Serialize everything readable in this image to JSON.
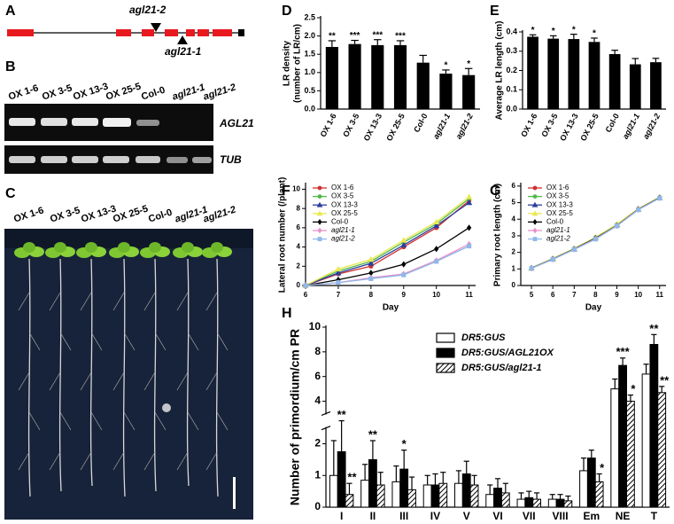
{
  "gene_model": {
    "panel": "A",
    "alleles": [
      "agl21-2",
      "agl21-1"
    ]
  },
  "gel": {
    "panel": "B",
    "lanes": [
      "OX 1-6",
      "OX 3-5",
      "OX 13-3",
      "OX 25-5",
      "Col-0",
      "agl21-1",
      "agl21-2"
    ],
    "genes": [
      "AGL21",
      "TUB"
    ]
  },
  "photo": {
    "panel": "C",
    "lanes": [
      "OX 1-6",
      "OX 3-5",
      "OX 13-3",
      "OX 25-5",
      "Col-0",
      "agl21-1",
      "agl21-2"
    ]
  },
  "chart_data": [
    {
      "type": "bar",
      "panel": "D",
      "ylabel": [
        "LR density",
        "(number of LR/cm)"
      ],
      "categories": [
        "OX 1-6",
        "OX 3-5",
        "OX 13-3",
        "OX 25-5",
        "Col-0",
        "agl21-1",
        "agl21-2"
      ],
      "italic": [
        false,
        false,
        false,
        false,
        false,
        true,
        true
      ],
      "values": [
        1.7,
        1.78,
        1.75,
        1.75,
        1.27,
        0.97,
        0.93
      ],
      "errors": [
        0.17,
        0.1,
        0.15,
        0.12,
        0.2,
        0.1,
        0.18
      ],
      "annotations": [
        "**",
        "***",
        "***",
        "***",
        null,
        "*",
        "*"
      ],
      "color": "#000000",
      "ylim": [
        0,
        2.5
      ],
      "yticks": [
        {
          "value": 0,
          "label": "0.0"
        },
        {
          "value": 0.5,
          "label": "0.5"
        },
        {
          "value": 1,
          "label": "1.0"
        },
        {
          "value": 1.5,
          "label": "1.5"
        },
        {
          "value": 2,
          "label": "2.0"
        },
        {
          "value": 2.5,
          "label": "2.5"
        }
      ]
    },
    {
      "type": "bar",
      "panel": "E",
      "ylabel": [
        "Average LR length (cm)"
      ],
      "categories": [
        "OX 1-6",
        "OX 3-5",
        "OX 13-3",
        "OX 25-5",
        "Col-0",
        "agl21-1",
        "agl21-2"
      ],
      "italic": [
        false,
        false,
        false,
        false,
        false,
        true,
        true
      ],
      "values": [
        0.375,
        0.365,
        0.363,
        0.348,
        0.285,
        0.232,
        0.243
      ],
      "errors": [
        0.01,
        0.015,
        0.025,
        0.02,
        0.02,
        0.03,
        0.02
      ],
      "annotations": [
        "*",
        "*",
        "*",
        "*",
        null,
        null,
        null
      ],
      "color": "#000000",
      "ylim": [
        0,
        0.4
      ],
      "yticks": [
        {
          "value": 0,
          "label": "0.0"
        },
        0.1,
        0.2,
        0.3,
        0.4
      ]
    },
    {
      "type": "line",
      "panel": "F",
      "xlabel": "Day",
      "ylabel": [
        "Lateral root number (/plant)"
      ],
      "x": [
        6,
        7,
        8,
        9,
        10,
        11
      ],
      "xlim": [
        6,
        11.2
      ],
      "xticks": [
        6,
        7,
        8,
        9,
        10,
        11
      ],
      "ylim": [
        0,
        10.5
      ],
      "yticks": [
        0,
        2,
        4,
        6,
        8,
        10
      ],
      "series": [
        {
          "name": "OX 1-6",
          "color": "#d03030",
          "marker": "circle",
          "values": [
            0,
            1.2,
            2.0,
            4.0,
            6.0,
            8.8
          ]
        },
        {
          "name": "OX 3-5",
          "color": "#50b848",
          "marker": "circle",
          "values": [
            0,
            1.5,
            2.5,
            4.5,
            6.4,
            9.0
          ]
        },
        {
          "name": "OX 13-3",
          "color": "#2c3e9c",
          "marker": "triangle",
          "values": [
            0,
            1.3,
            2.3,
            4.2,
            6.2,
            8.6
          ]
        },
        {
          "name": "OX 25-5",
          "color": "#e8e850",
          "marker": "triangle",
          "values": [
            0,
            1.7,
            2.7,
            4.7,
            6.6,
            9.2
          ]
        },
        {
          "name": "Col-0",
          "color": "#000000",
          "marker": "diamond",
          "values": [
            0,
            0.6,
            1.3,
            2.2,
            3.8,
            6.0
          ]
        },
        {
          "name": "agl21-1",
          "color": "#e890c8",
          "marker": "diamond",
          "values": [
            0,
            0.3,
            0.8,
            1.2,
            2.6,
            4.3
          ]
        },
        {
          "name": "agl21-2",
          "color": "#90b8e8",
          "marker": "square",
          "values": [
            0,
            0.3,
            0.7,
            1.1,
            2.5,
            4.1
          ]
        }
      ],
      "legend_italic": [
        false,
        false,
        false,
        false,
        false,
        true,
        true
      ]
    },
    {
      "type": "line",
      "panel": "G",
      "xlabel": "Day",
      "ylabel": [
        "Primary root length (cm)"
      ],
      "x": [
        5,
        6,
        7,
        8,
        9,
        10,
        11
      ],
      "xlim": [
        4.5,
        11.3
      ],
      "xticks": [
        5,
        6,
        7,
        8,
        9,
        10,
        11
      ],
      "ylim": [
        0,
        6.1
      ],
      "yticks": [
        0,
        1,
        2,
        3,
        4,
        5,
        6
      ],
      "series": [
        {
          "name": "OX 1-6",
          "color": "#d03030",
          "marker": "circle",
          "values": [
            1.05,
            1.6,
            2.2,
            2.85,
            3.65,
            4.6,
            5.3
          ]
        },
        {
          "name": "OX 3-5",
          "color": "#50b848",
          "marker": "circle",
          "values": [
            1.05,
            1.62,
            2.22,
            2.9,
            3.68,
            4.62,
            5.32
          ]
        },
        {
          "name": "OX 13-3",
          "color": "#2c3e9c",
          "marker": "triangle",
          "values": [
            1.04,
            1.6,
            2.2,
            2.88,
            3.66,
            4.6,
            5.3
          ]
        },
        {
          "name": "OX 25-5",
          "color": "#e8e850",
          "marker": "triangle",
          "values": [
            1.06,
            1.63,
            2.23,
            2.9,
            3.7,
            4.63,
            5.33
          ]
        },
        {
          "name": "Col-0",
          "color": "#000000",
          "marker": "diamond",
          "values": [
            1.05,
            1.6,
            2.2,
            2.85,
            3.62,
            4.6,
            5.3
          ]
        },
        {
          "name": "agl21-1",
          "color": "#e890c8",
          "marker": "diamond",
          "values": [
            1.04,
            1.58,
            2.18,
            2.82,
            3.6,
            4.58,
            5.28
          ]
        },
        {
          "name": "agl21-2",
          "color": "#90b8e8",
          "marker": "square",
          "values": [
            1.04,
            1.58,
            2.17,
            2.8,
            3.6,
            4.57,
            5.27
          ]
        }
      ],
      "legend_italic": [
        false,
        false,
        false,
        false,
        false,
        true,
        true
      ]
    },
    {
      "type": "grouped-bar",
      "panel": "H",
      "ylabel": [
        "Number of primordium/cm PR"
      ],
      "categories": [
        "I",
        "II",
        "III",
        "IV",
        "V",
        "VI",
        "VII",
        "VIII",
        "Em",
        "NE",
        "T"
      ],
      "ylim": [
        0,
        10
      ],
      "ybreak": [
        2.5,
        3
      ],
      "yticks": [
        0,
        1,
        2,
        4,
        6,
        8,
        10
      ],
      "series": [
        {
          "name": "DR5:GUS",
          "color": "#ffffff",
          "values": [
            1.0,
            0.85,
            0.8,
            0.7,
            0.75,
            0.4,
            0.25,
            0.25,
            1.15,
            5.0,
            6.2
          ],
          "errors": [
            1.1,
            0.5,
            0.5,
            0.3,
            0.4,
            0.3,
            0.2,
            0.15,
            0.4,
            0.8,
            0.8
          ],
          "annotations": [
            null,
            null,
            null,
            null,
            null,
            null,
            null,
            null,
            null,
            null,
            null
          ]
        },
        {
          "name": "DR5:GUS/AGL21OX",
          "color": "#000000",
          "values": [
            1.75,
            1.5,
            1.2,
            0.7,
            1.05,
            0.6,
            0.3,
            0.25,
            1.55,
            6.9,
            8.6
          ],
          "errors": [
            0.95,
            0.6,
            0.6,
            0.35,
            0.4,
            0.3,
            0.2,
            0.15,
            0.25,
            0.6,
            0.8
          ],
          "annotations": [
            "**",
            "**",
            "*",
            null,
            null,
            null,
            null,
            null,
            null,
            "***",
            "**"
          ]
        },
        {
          "name": "DR5:GUS/agl21-1",
          "color": "#000000",
          "hatch": true,
          "values": [
            0.4,
            0.7,
            0.55,
            0.75,
            0.7,
            0.45,
            0.25,
            0.2,
            0.8,
            4.0,
            4.7
          ],
          "errors": [
            0.35,
            0.4,
            0.4,
            0.35,
            0.3,
            0.3,
            0.2,
            0.15,
            0.25,
            0.5,
            0.5
          ],
          "annotations": [
            "**",
            null,
            null,
            null,
            null,
            null,
            null,
            null,
            "*",
            "*",
            "**"
          ]
        }
      ]
    }
  ]
}
